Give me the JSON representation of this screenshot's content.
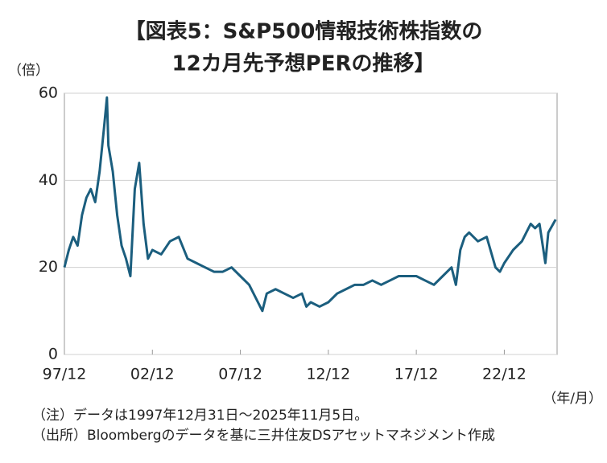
{
  "chart_data": {
    "type": "line",
    "title": [
      "【図表5：S&P500情報技術株指数の",
      "12カ月先予想PERの推移】"
    ],
    "y_label": "（倍）",
    "x_label": "（年/月）",
    "notes": [
      "（注）データは1997年12月31日～2025年11月5日。",
      "（出所）Bloombergのデータを基に三井住友DSアセットマネジメント作成"
    ],
    "x": [
      "1997-12",
      "1998-03",
      "1998-06",
      "1998-09",
      "1998-12",
      "1999-03",
      "1999-06",
      "1999-09",
      "1999-12",
      "2000-03",
      "2000-05",
      "2000-06",
      "2000-09",
      "2000-12",
      "2001-03",
      "2001-06",
      "2001-09",
      "2001-12",
      "2002-03",
      "2002-06",
      "2002-09",
      "2002-12",
      "2003-06",
      "2003-12",
      "2004-06",
      "2004-12",
      "2005-06",
      "2005-12",
      "2006-06",
      "2006-12",
      "2007-06",
      "2007-12",
      "2008-06",
      "2008-12",
      "2009-03",
      "2009-06",
      "2009-12",
      "2010-06",
      "2010-12",
      "2011-06",
      "2011-09",
      "2011-12",
      "2012-06",
      "2012-12",
      "2013-06",
      "2013-12",
      "2014-06",
      "2014-12",
      "2015-06",
      "2015-12",
      "2016-06",
      "2016-12",
      "2017-06",
      "2017-12",
      "2018-06",
      "2018-12",
      "2019-06",
      "2019-12",
      "2020-03",
      "2020-06",
      "2020-09",
      "2020-12",
      "2021-06",
      "2021-12",
      "2022-06",
      "2022-09",
      "2022-12",
      "2023-06",
      "2023-12",
      "2024-03",
      "2024-06",
      "2024-09",
      "2024-12",
      "2025-04",
      "2025-06",
      "2025-11"
    ],
    "series": [
      {
        "name": "PER",
        "color": "#1b5e7e",
        "values": [
          20,
          24,
          27,
          25,
          32,
          36,
          38,
          35,
          42,
          52,
          59,
          48,
          42,
          32,
          25,
          22,
          18,
          38,
          44,
          30,
          22,
          24,
          23,
          26,
          27,
          22,
          21,
          20,
          19,
          19,
          20,
          18,
          16,
          12,
          10,
          14,
          15,
          14,
          13,
          14,
          11,
          12,
          11,
          12,
          14,
          15,
          16,
          16,
          17,
          16,
          17,
          18,
          18,
          18,
          17,
          16,
          18,
          20,
          16,
          24,
          27,
          28,
          26,
          27,
          20,
          19,
          21,
          24,
          26,
          28,
          30,
          29,
          30,
          21,
          28,
          31
        ]
      }
    ],
    "xlim": [
      "1997-12",
      "2025-12"
    ],
    "xticks": [
      {
        "value": "1997-12",
        "label": "97/12"
      },
      {
        "value": "2002-12",
        "label": "02/12"
      },
      {
        "value": "2007-12",
        "label": "07/12"
      },
      {
        "value": "2012-12",
        "label": "12/12"
      },
      {
        "value": "2017-12",
        "label": "17/12"
      },
      {
        "value": "2022-12",
        "label": "22/12"
      }
    ],
    "ylim": [
      0,
      60
    ],
    "yticks": [
      0,
      20,
      40,
      60
    ],
    "grid": true
  }
}
